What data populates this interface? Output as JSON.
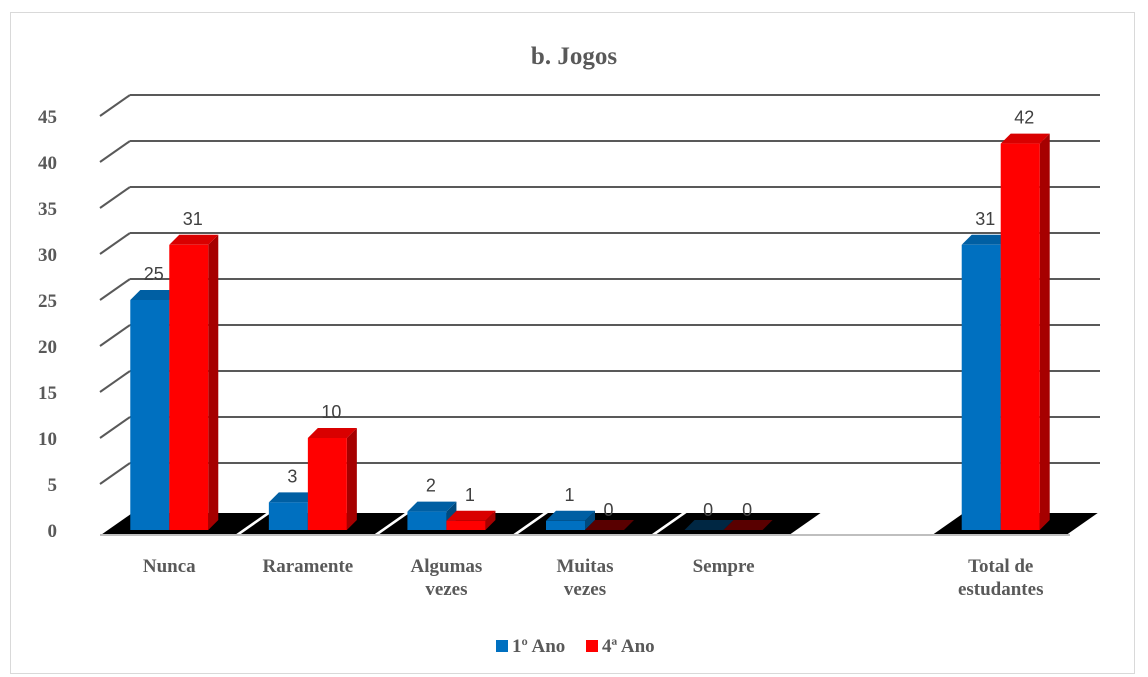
{
  "chart_data": {
    "type": "bar",
    "title": "b. Jogos",
    "categories": [
      "Nunca",
      "Raramente",
      "Algumas vezes",
      "Muitas vezes",
      "Sempre",
      "",
      "Total de estudantes"
    ],
    "series": [
      {
        "name": "1º Ano",
        "values": [
          25,
          3,
          2,
          1,
          0,
          null,
          31
        ]
      },
      {
        "name": "4ª Ano",
        "values": [
          31,
          10,
          1,
          0,
          0,
          null,
          42
        ]
      }
    ],
    "ylim": [
      0,
      45
    ],
    "yticks": [
      0,
      5,
      10,
      15,
      20,
      25,
      30,
      35,
      40,
      45
    ],
    "grid": true,
    "legend": "bottom",
    "colors": {
      "1º Ano": "#0070c0",
      "4ª Ano": "#ff0000"
    },
    "style": "3d-column"
  }
}
